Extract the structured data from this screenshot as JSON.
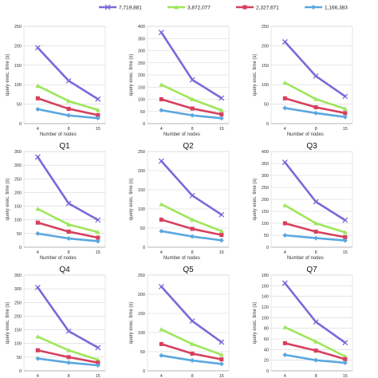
{
  "legend": [
    {
      "label": "7,719,881",
      "color": "#7b68d9",
      "marker": "x"
    },
    {
      "label": "3,872,077",
      "color": "#9ee65a",
      "marker": "triangle"
    },
    {
      "label": "2,327,671",
      "color": "#d6405e",
      "marker": "square"
    },
    {
      "label": "1,166,383",
      "color": "#5aa7e0",
      "marker": "diamond"
    }
  ],
  "chart_data": [
    {
      "type": "line",
      "title": "Q1",
      "xlabel": "Number of nodes",
      "ylabel": "query exec. time (s)",
      "categories": [
        "4",
        "8",
        "15"
      ],
      "ylim": [
        0,
        250
      ],
      "yticks": [
        0,
        50,
        100,
        150,
        200,
        250
      ],
      "grid": "horizontal",
      "series": [
        {
          "name": "7,719,881",
          "values": [
            195,
            110,
            63
          ]
        },
        {
          "name": "3,872,077",
          "values": [
            97,
            58,
            35
          ]
        },
        {
          "name": "2,327,671",
          "values": [
            65,
            38,
            22
          ]
        },
        {
          "name": "1,166,383",
          "values": [
            37,
            21,
            14
          ]
        }
      ]
    },
    {
      "type": "line",
      "title": "Q2",
      "xlabel": "Number of nodes",
      "ylabel": "query exec. time (s)",
      "categories": [
        "4",
        "8",
        "15"
      ],
      "ylim": [
        0,
        400
      ],
      "yticks": [
        0,
        50,
        100,
        150,
        200,
        250,
        300,
        350,
        400
      ],
      "grid": "horizontal",
      "series": [
        {
          "name": "7,719,881",
          "values": [
            375,
            180,
            105
          ]
        },
        {
          "name": "3,872,077",
          "values": [
            160,
            100,
            55
          ]
        },
        {
          "name": "2,327,671",
          "values": [
            100,
            62,
            38
          ]
        },
        {
          "name": "1,166,383",
          "values": [
            55,
            34,
            22
          ]
        }
      ]
    },
    {
      "type": "line",
      "title": "Q3",
      "xlabel": "Number of nodes",
      "ylabel": "query exec. time (s)",
      "categories": [
        "4",
        "8",
        "15"
      ],
      "ylim": [
        0,
        250
      ],
      "yticks": [
        0,
        50,
        100,
        150,
        200,
        250
      ],
      "grid": "horizontal",
      "series": [
        {
          "name": "7,719,881",
          "values": [
            210,
            122,
            70
          ]
        },
        {
          "name": "3,872,077",
          "values": [
            105,
            63,
            38
          ]
        },
        {
          "name": "2,327,671",
          "values": [
            65,
            42,
            27
          ]
        },
        {
          "name": "1,166,383",
          "values": [
            40,
            27,
            17
          ]
        }
      ]
    },
    {
      "type": "line",
      "title": "Q4",
      "xlabel": "Number of nodes",
      "ylabel": "query exec. time (s)",
      "categories": [
        "4",
        "8",
        "15"
      ],
      "ylim": [
        0,
        350
      ],
      "yticks": [
        0,
        50,
        100,
        150,
        200,
        250,
        300,
        350
      ],
      "grid": "horizontal",
      "series": [
        {
          "name": "7,719,881",
          "values": [
            330,
            160,
            100
          ]
        },
        {
          "name": "3,872,077",
          "values": [
            140,
            83,
            55
          ]
        },
        {
          "name": "2,327,671",
          "values": [
            90,
            57,
            35
          ]
        },
        {
          "name": "1,166,383",
          "values": [
            50,
            32,
            22
          ]
        }
      ]
    },
    {
      "type": "line",
      "title": "Q5",
      "xlabel": "Number of nodes",
      "ylabel": "query exec. time (s)",
      "categories": [
        "4",
        "8",
        "15"
      ],
      "ylim": [
        0,
        250
      ],
      "yticks": [
        0,
        50,
        100,
        150,
        200,
        250
      ],
      "grid": "horizontal",
      "series": [
        {
          "name": "7,719,881",
          "values": [
            225,
            135,
            85
          ]
        },
        {
          "name": "3,872,077",
          "values": [
            112,
            72,
            42
          ]
        },
        {
          "name": "2,327,671",
          "values": [
            72,
            48,
            32
          ]
        },
        {
          "name": "1,166,383",
          "values": [
            42,
            28,
            18
          ]
        }
      ]
    },
    {
      "type": "line",
      "title": "Q7",
      "xlabel": "Number of nodes",
      "ylabel": "query exec. time (s)",
      "categories": [
        "4",
        "8",
        "15"
      ],
      "ylim": [
        0,
        400
      ],
      "yticks": [
        0,
        50,
        100,
        150,
        200,
        250,
        300,
        350,
        400
      ],
      "grid": "horizontal",
      "series": [
        {
          "name": "7,719,881",
          "values": [
            355,
            190,
            113
          ]
        },
        {
          "name": "3,872,077",
          "values": [
            175,
            100,
            62
          ]
        },
        {
          "name": "2,327,671",
          "values": [
            100,
            65,
            42
          ]
        },
        {
          "name": "1,166,383",
          "values": [
            50,
            38,
            28
          ]
        }
      ]
    },
    {
      "type": "line",
      "title": "",
      "xlabel": "Number of nodes",
      "ylabel": "query exec. time (s)",
      "categories": [
        "4",
        "8",
        "15"
      ],
      "ylim": [
        0,
        350
      ],
      "yticks": [
        0,
        50,
        100,
        150,
        200,
        250,
        300,
        350
      ],
      "grid": "horizontal",
      "series": [
        {
          "name": "7,719,881",
          "values": [
            305,
            145,
            85
          ]
        },
        {
          "name": "3,872,077",
          "values": [
            125,
            75,
            40
          ]
        },
        {
          "name": "2,327,671",
          "values": [
            75,
            50,
            30
          ]
        },
        {
          "name": "1,166,383",
          "values": [
            45,
            30,
            20
          ]
        }
      ]
    },
    {
      "type": "line",
      "title": "",
      "xlabel": "Number of nodes",
      "ylabel": "query exec. time (s)",
      "categories": [
        "4",
        "8",
        "15"
      ],
      "ylim": [
        0,
        250
      ],
      "yticks": [
        0,
        50,
        100,
        150,
        200,
        250
      ],
      "grid": "horizontal",
      "series": [
        {
          "name": "7,719,881",
          "values": [
            220,
            130,
            75
          ]
        },
        {
          "name": "3,872,077",
          "values": [
            108,
            70,
            42
          ]
        },
        {
          "name": "2,327,671",
          "values": [
            70,
            45,
            30
          ]
        },
        {
          "name": "1,166,383",
          "values": [
            40,
            27,
            18
          ]
        }
      ]
    },
    {
      "type": "line",
      "title": "",
      "xlabel": "Number of nodes",
      "ylabel": "query exec. time (s)",
      "categories": [
        "4",
        "8",
        "15"
      ],
      "ylim": [
        0,
        180
      ],
      "yticks": [
        0,
        20,
        40,
        60,
        80,
        100,
        120,
        140,
        160,
        180
      ],
      "grid": "horizontal",
      "series": [
        {
          "name": "7,719,881",
          "values": [
            165,
            92,
            53
          ]
        },
        {
          "name": "3,872,077",
          "values": [
            82,
            55,
            27
          ]
        },
        {
          "name": "2,327,671",
          "values": [
            52,
            38,
            22
          ]
        },
        {
          "name": "1,166,383",
          "values": [
            30,
            20,
            15
          ]
        }
      ]
    }
  ]
}
